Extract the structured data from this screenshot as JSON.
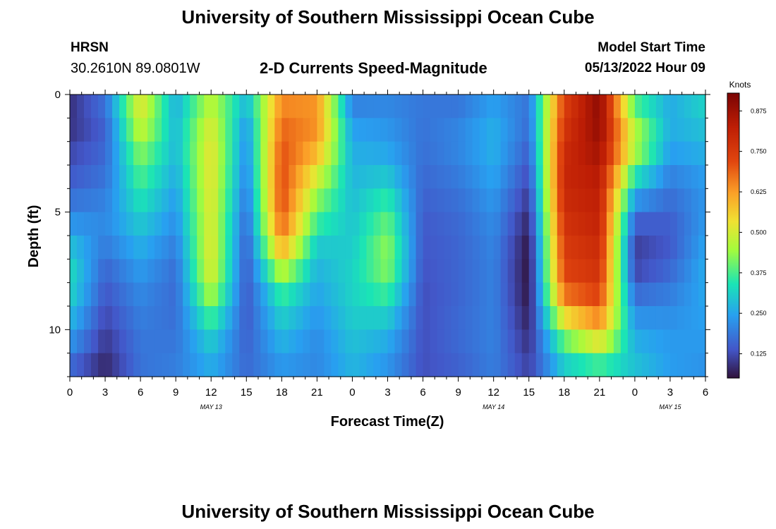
{
  "header": {
    "title": "University of Southern Mississippi Ocean Cube",
    "station": "HRSN",
    "coordinates": "30.2610N  89.0801W",
    "product": "2-D Currents Speed-Magnitude",
    "model_start_label": "Model Start Time",
    "model_start_value": "05/13/2022 Hour 09"
  },
  "footer": {
    "title": "University of Southern Mississippi Ocean Cube"
  },
  "chart_data": {
    "type": "heatmap",
    "title": "2-D Currents Speed-Magnitude",
    "xlabel": "Forecast Time(Z)",
    "ylabel": "Depth (ft)",
    "x_range": [
      0,
      54
    ],
    "y_range": [
      0,
      12
    ],
    "x_ticks": [
      0,
      3,
      6,
      9,
      12,
      15,
      18,
      21,
      24,
      27,
      30,
      33,
      36,
      39,
      42,
      45,
      48,
      51,
      54
    ],
    "x_tick_labels": [
      "0",
      "3",
      "6",
      "9",
      "12",
      "15",
      "18",
      "21",
      "0",
      "3",
      "6",
      "9",
      "12",
      "15",
      "18",
      "21",
      "0",
      "3",
      "6"
    ],
    "y_ticks": [
      0,
      5,
      10
    ],
    "y_tick_labels": [
      "0",
      "5",
      "10"
    ],
    "date_labels": [
      {
        "text": "MAY 13",
        "hour": 12
      },
      {
        "text": "MAY 14",
        "hour": 36
      },
      {
        "text": "MAY 15",
        "hour": 51
      }
    ],
    "colorbar": {
      "title": "Knots",
      "min": 0.05,
      "max": 0.93,
      "ticks": [
        0.125,
        0.25,
        0.375,
        0.5,
        0.625,
        0.75,
        0.875
      ],
      "tick_labels": [
        "0.125",
        "0.250",
        "0.375",
        "0.500",
        "0.625",
        "0.750",
        "0.875"
      ]
    },
    "grid": {
      "depths": [
        0,
        1,
        2,
        3,
        4,
        5,
        6,
        7,
        8,
        9,
        10,
        11,
        12
      ],
      "times": [
        0,
        3,
        6,
        9,
        12,
        15,
        18,
        21,
        24,
        27,
        30,
        33,
        36,
        39,
        42,
        45,
        48,
        51,
        54
      ],
      "speed_knots": [
        [
          0.1,
          0.2,
          0.52,
          0.26,
          0.46,
          0.3,
          0.63,
          0.62,
          0.18,
          0.2,
          0.19,
          0.17,
          0.23,
          0.18,
          0.73,
          0.9,
          0.35,
          0.26,
          0.33
        ],
        [
          0.08,
          0.15,
          0.52,
          0.27,
          0.5,
          0.24,
          0.67,
          0.65,
          0.23,
          0.22,
          0.18,
          0.2,
          0.26,
          0.18,
          0.75,
          0.9,
          0.42,
          0.26,
          0.3
        ],
        [
          0.11,
          0.16,
          0.45,
          0.28,
          0.53,
          0.22,
          0.7,
          0.62,
          0.26,
          0.24,
          0.18,
          0.21,
          0.27,
          0.16,
          0.78,
          0.88,
          0.5,
          0.26,
          0.28
        ],
        [
          0.13,
          0.17,
          0.4,
          0.27,
          0.53,
          0.21,
          0.72,
          0.55,
          0.27,
          0.27,
          0.17,
          0.2,
          0.26,
          0.14,
          0.8,
          0.85,
          0.4,
          0.22,
          0.25
        ],
        [
          0.16,
          0.19,
          0.36,
          0.25,
          0.53,
          0.19,
          0.72,
          0.45,
          0.28,
          0.33,
          0.16,
          0.18,
          0.24,
          0.11,
          0.8,
          0.82,
          0.28,
          0.18,
          0.23
        ],
        [
          0.2,
          0.21,
          0.32,
          0.23,
          0.52,
          0.17,
          0.72,
          0.4,
          0.29,
          0.38,
          0.15,
          0.17,
          0.22,
          0.09,
          0.78,
          0.82,
          0.18,
          0.16,
          0.23
        ],
        [
          0.26,
          0.21,
          0.28,
          0.21,
          0.52,
          0.15,
          0.66,
          0.32,
          0.3,
          0.42,
          0.14,
          0.16,
          0.21,
          0.06,
          0.76,
          0.8,
          0.12,
          0.14,
          0.24
        ],
        [
          0.32,
          0.17,
          0.25,
          0.18,
          0.53,
          0.14,
          0.55,
          0.28,
          0.31,
          0.44,
          0.14,
          0.16,
          0.2,
          0.05,
          0.74,
          0.78,
          0.1,
          0.15,
          0.26
        ],
        [
          0.34,
          0.15,
          0.22,
          0.17,
          0.5,
          0.14,
          0.4,
          0.26,
          0.32,
          0.4,
          0.13,
          0.16,
          0.2,
          0.05,
          0.72,
          0.76,
          0.14,
          0.18,
          0.26
        ],
        [
          0.3,
          0.13,
          0.2,
          0.17,
          0.42,
          0.14,
          0.33,
          0.24,
          0.31,
          0.33,
          0.13,
          0.16,
          0.2,
          0.06,
          0.62,
          0.7,
          0.2,
          0.21,
          0.25
        ],
        [
          0.26,
          0.11,
          0.19,
          0.18,
          0.33,
          0.15,
          0.29,
          0.22,
          0.3,
          0.28,
          0.13,
          0.17,
          0.2,
          0.08,
          0.45,
          0.6,
          0.25,
          0.23,
          0.24
        ],
        [
          0.2,
          0.09,
          0.18,
          0.19,
          0.28,
          0.16,
          0.25,
          0.21,
          0.28,
          0.24,
          0.13,
          0.16,
          0.2,
          0.1,
          0.34,
          0.44,
          0.28,
          0.24,
          0.23
        ],
        [
          0.14,
          0.07,
          0.18,
          0.2,
          0.25,
          0.17,
          0.22,
          0.21,
          0.27,
          0.22,
          0.13,
          0.15,
          0.19,
          0.12,
          0.28,
          0.3,
          0.3,
          0.24,
          0.22
        ]
      ]
    }
  }
}
